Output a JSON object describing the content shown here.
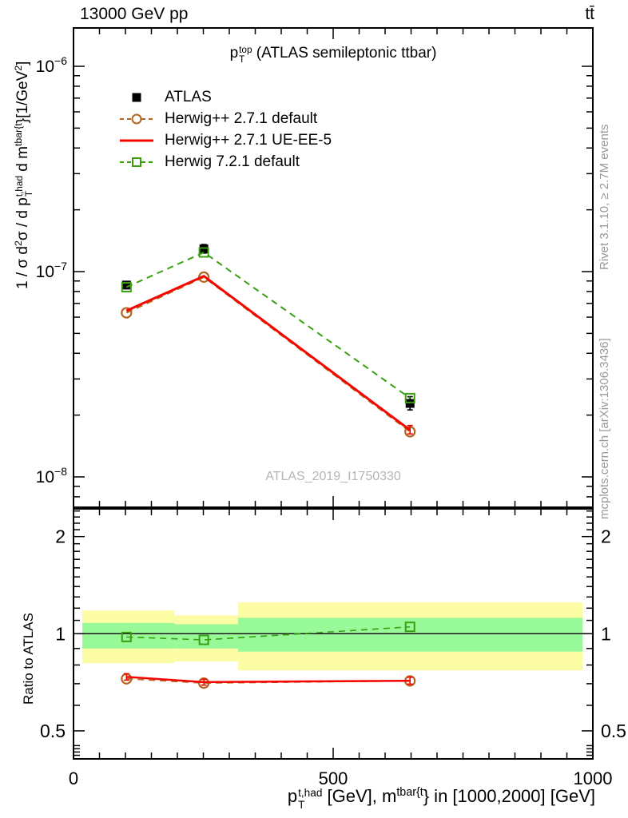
{
  "header": {
    "left": "13000 GeV pp",
    "right": "tt̄"
  },
  "watermarks": {
    "rivet": "Rivet 3.1.10, ≥ 2.7M events",
    "mcplots": "mcplots.cern.ch [arXiv:1306.3436]",
    "analysis": "ATLAS_2019_I1750330"
  },
  "main_panel": {
    "title_segments": [
      {
        "style": "n",
        "text": "p"
      },
      {
        "style": "stack",
        "sup": "top",
        "sub": "T"
      },
      {
        "style": "n",
        "text": " (ATLAS semileptonic ttbar)"
      }
    ],
    "ylabel_segments": [
      {
        "style": "n",
        "text": "1 / σ d"
      },
      {
        "style": "sup",
        "text": "2"
      },
      {
        "style": "n",
        "text": "σ / d p"
      },
      {
        "style": "stack",
        "sup": "t,had",
        "sub": "T"
      },
      {
        "style": "n",
        "text": " d m"
      },
      {
        "style": "sup",
        "text": "tbar{t"
      },
      {
        "style": "n",
        "text": "}[1/GeV"
      },
      {
        "style": "sup",
        "text": "2"
      },
      {
        "style": "n",
        "text": "]"
      }
    ]
  },
  "ratio_panel": {
    "ylabel": "Ratio to ATLAS"
  },
  "xaxis": {
    "label_segments": [
      {
        "style": "n",
        "text": "p"
      },
      {
        "style": "stack",
        "sup": "t,had",
        "sub": "T"
      },
      {
        "style": "n",
        "text": " [GeV], m"
      },
      {
        "style": "sup",
        "text": "tbar{t"
      },
      {
        "style": "n",
        "text": "} in [1000,2000] [GeV]"
      }
    ]
  },
  "legend": {
    "items": [
      {
        "label": "ATLAS"
      },
      {
        "label": "Herwig++ 2.7.1 default"
      },
      {
        "label": "Herwig++ 2.7.1 UE-EE-5"
      },
      {
        "label": "Herwig 7.2.1 default"
      }
    ]
  },
  "chart_data": {
    "type": "line",
    "title": "pT^top (ATLAS semileptonic ttbar)",
    "xlabel": "pT^{t,had} [GeV], m^{tbar} in [1000,2000] [GeV]",
    "ylabel_main": "1/sigma d2sigma / d pT^{t,had} d m^{tbar} [1/GeV^2]",
    "ylabel_ratio": "Ratio to ATLAS",
    "xlim": [
      0,
      1000
    ],
    "xticks_labeled": [
      0,
      500,
      1000
    ],
    "xaxis_minor_step": 50,
    "x_values": [
      102,
      251,
      648
    ],
    "bin_edges_gev": [
      17,
      194,
      317,
      980
    ],
    "main": {
      "yscale": "log",
      "ylim": [
        7.1e-09,
        1.54e-06
      ],
      "ytick_exponents": [
        -6,
        -7,
        -8
      ],
      "series": [
        {
          "name": "ATLAS",
          "color": "#000000",
          "marker": "filled-square",
          "line": "none",
          "line_width": 0,
          "values": [
            8.6e-08,
            1.29e-07,
            2.28e-08
          ],
          "yerr": [
            [
              8.25e-08,
              8.95e-08
            ],
            [
              1.23e-07,
              1.355e-07
            ],
            [
              2.12e-08,
              2.46e-08
            ]
          ]
        },
        {
          "name": "Herwig++ 2.7.1 default",
          "color": "#b5651d",
          "marker": "open-circle",
          "line": "dashed",
          "line_width": 2,
          "values": [
            6.3e-08,
            9.4e-08,
            1.66e-08
          ],
          "yerr": null
        },
        {
          "name": "Herwig++ 2.7.1 UE-EE-5",
          "color": "#f60400",
          "marker": "none",
          "line": "solid",
          "line_width": 3,
          "values": [
            6.45e-08,
            9.5e-08,
            1.69e-08
          ],
          "yerr": [
            null,
            null,
            [
              1.62e-08,
              1.78e-08
            ]
          ]
        },
        {
          "name": "Herwig 7.2.1 default",
          "color": "#38a00e",
          "marker": "open-square",
          "line": "dashed",
          "line_width": 2,
          "values": [
            8.4e-08,
            1.24e-07,
            2.42e-08
          ],
          "yerr": null
        }
      ]
    },
    "ratio": {
      "yscale": "log",
      "ylim": [
        0.41,
        2.46
      ],
      "yticks": [
        0.5,
        1,
        2
      ],
      "ytick_minors": [
        0.42,
        0.43,
        0.44,
        0.45,
        0.6,
        0.7,
        0.8,
        0.9,
        1.1,
        1.2,
        1.3,
        1.4,
        1.5,
        1.6,
        1.7,
        1.8,
        1.9,
        2.1,
        2.2,
        2.3,
        2.4
      ],
      "band_colors": {
        "yellow": "#fcfca4",
        "green": "#98f998"
      },
      "bands": [
        {
          "x0": 17,
          "x1": 194,
          "yellow": [
            0.81,
            1.18
          ],
          "green": [
            0.9,
            1.08
          ]
        },
        {
          "x0": 194,
          "x1": 317,
          "yellow": [
            0.82,
            1.14
          ],
          "green": [
            0.9,
            1.07
          ]
        },
        {
          "x0": 317,
          "x1": 980,
          "yellow": [
            0.77,
            1.25
          ],
          "green": [
            0.88,
            1.12
          ]
        }
      ],
      "series": [
        {
          "name": "Herwig++ 2.7.1 default",
          "values": [
            0.725,
            0.703,
            0.714
          ],
          "yerr": null
        },
        {
          "name": "Herwig++ 2.7.1 UE-EE-5",
          "values": [
            0.735,
            0.708,
            0.715
          ],
          "yerr": [
            [
              0.718,
              0.752
            ],
            [
              0.693,
              0.722
            ],
            [
              0.698,
              0.733
            ]
          ]
        },
        {
          "name": "Herwig 7.2.1 default",
          "values": [
            0.977,
            0.957,
            1.05
          ],
          "yerr": null
        }
      ]
    }
  }
}
